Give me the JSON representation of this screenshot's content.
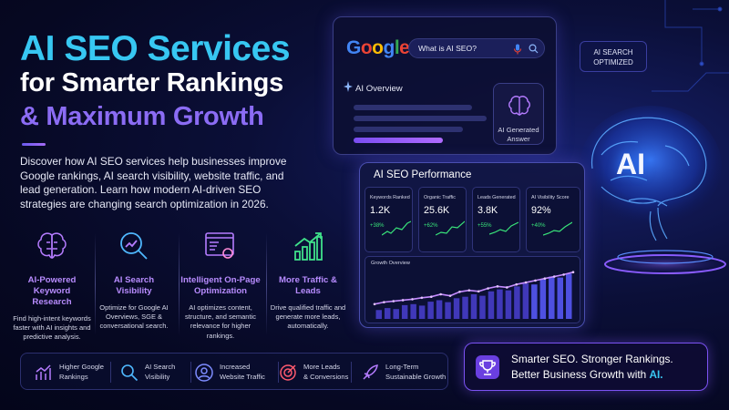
{
  "headline": {
    "line1": "AI SEO Services",
    "line2": "for Smarter Rankings",
    "line3": "& Maximum Growth"
  },
  "description": "Discover how AI SEO services help businesses improve Google rankings, AI search visibility, website traffic, and lead generation. Learn how modern AI-driven SEO strategies are changing search optimization in 2026.",
  "features": [
    {
      "icon": "brain-chip-icon",
      "title": "AI-Powered Keyword Research",
      "desc": "Find high-intent keywords faster with AI insights and predictive analysis."
    },
    {
      "icon": "magnifier-chart-icon",
      "title": "AI Search Visibility",
      "desc": "Optimize for Google AI Overviews, SGE & conversational search."
    },
    {
      "icon": "webpage-gear-icon",
      "title": "Intelligent On-Page Optimization",
      "desc": "AI optimizes content, structure, and semantic relevance for higher rankings."
    },
    {
      "icon": "bar-growth-icon",
      "title": "More Traffic & Leads",
      "desc": "Drive qualified traffic and generate more leads, automatically."
    }
  ],
  "benefits": [
    {
      "icon": "rising-chart-icon",
      "line1": "Higher Google",
      "line2": "Rankings"
    },
    {
      "icon": "search-icon",
      "line1": "AI Search",
      "line2": "Visibility"
    },
    {
      "icon": "people-icon",
      "line1": "Increased",
      "line2": "Website Traffic"
    },
    {
      "icon": "target-icon",
      "line1": "More Leads",
      "line2": "& Conversions"
    },
    {
      "icon": "rocket-icon",
      "line1": "Long-Term",
      "line2": "Sustainable Growth"
    }
  ],
  "cta": {
    "line1": "Smarter SEO. Stronger Rankings.",
    "line2_prefix": "Better Business Growth with ",
    "line2_highlight": "AI."
  },
  "google_card": {
    "logo": "Google",
    "query": "What is AI SEO?",
    "overview_label": "AI Overview",
    "answer_label": "AI Generated Answer"
  },
  "ai_tag": {
    "line1": "AI SEARCH",
    "line2": "OPTIMIZED"
  },
  "performance": {
    "title": "AI SEO Performance",
    "metrics": [
      {
        "label": "Keywords Ranked",
        "value": "1.2K",
        "change": "+38%"
      },
      {
        "label": "Organic Traffic",
        "value": "25.6K",
        "change": "+62%"
      },
      {
        "label": "Leads Generated",
        "value": "3.8K",
        "change": "+55%"
      },
      {
        "label": "AI Visibility Score",
        "value": "92%",
        "change": "+40%"
      }
    ],
    "growth_label": "Growth Overview",
    "growth_bars": [
      0.18,
      0.22,
      0.2,
      0.28,
      0.3,
      0.27,
      0.35,
      0.38,
      0.34,
      0.42,
      0.45,
      0.5,
      0.47,
      0.56,
      0.6,
      0.58,
      0.66,
      0.72,
      0.7,
      0.8,
      0.86,
      0.84,
      0.92
    ],
    "growth_line": [
      0.3,
      0.34,
      0.36,
      0.38,
      0.4,
      0.43,
      0.45,
      0.5,
      0.47,
      0.55,
      0.58,
      0.56,
      0.62,
      0.66,
      0.64,
      0.7,
      0.74,
      0.78,
      0.82,
      0.86,
      0.9,
      0.95
    ]
  },
  "brain_label": "AI",
  "colors": {
    "accent_cyan": "#37c7f2",
    "accent_purple": "#8b6cf4",
    "positive": "#39e37a"
  }
}
